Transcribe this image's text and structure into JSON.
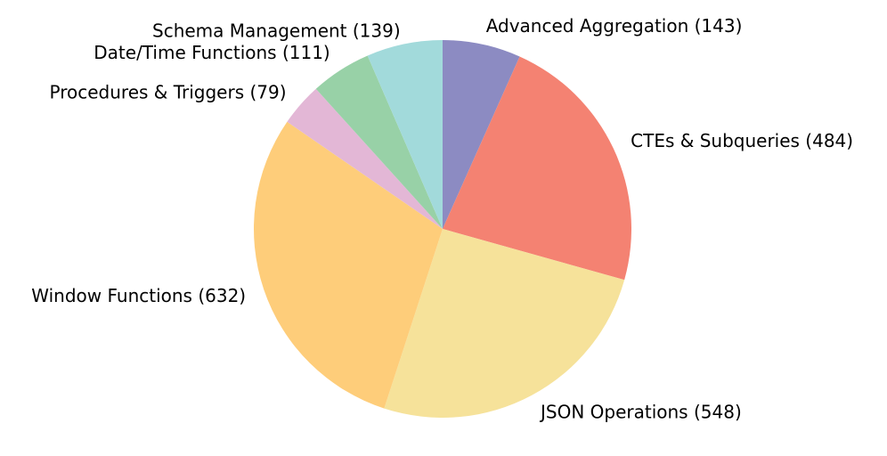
{
  "chart_data": {
    "type": "pie",
    "title": "",
    "slices": [
      {
        "label": "Advanced Aggregation (143)",
        "category": "Advanced Aggregation",
        "value": 143,
        "color": "#8C8BC2"
      },
      {
        "label": "CTEs & Subqueries (484)",
        "category": "CTEs & Subqueries",
        "value": 484,
        "color": "#F48272"
      },
      {
        "label": "JSON Operations (548)",
        "category": "JSON Operations",
        "value": 548,
        "color": "#F6E29A"
      },
      {
        "label": "Window Functions (632)",
        "category": "Window Functions",
        "value": 632,
        "color": "#FECD7A"
      },
      {
        "label": "Procedures & Triggers (79)",
        "category": "Procedures & Triggers",
        "value": 79,
        "color": "#E3B7D6"
      },
      {
        "label": "Date/Time Functions (111)",
        "category": "Date/Time Functions",
        "value": 111,
        "color": "#98D1A7"
      },
      {
        "label": "Schema Management (139)",
        "category": "Schema Management",
        "value": 139,
        "color": "#A2DADB"
      }
    ],
    "start_angle_deg": 90,
    "direction": "clockwise",
    "legend": "none",
    "grid": false
  }
}
